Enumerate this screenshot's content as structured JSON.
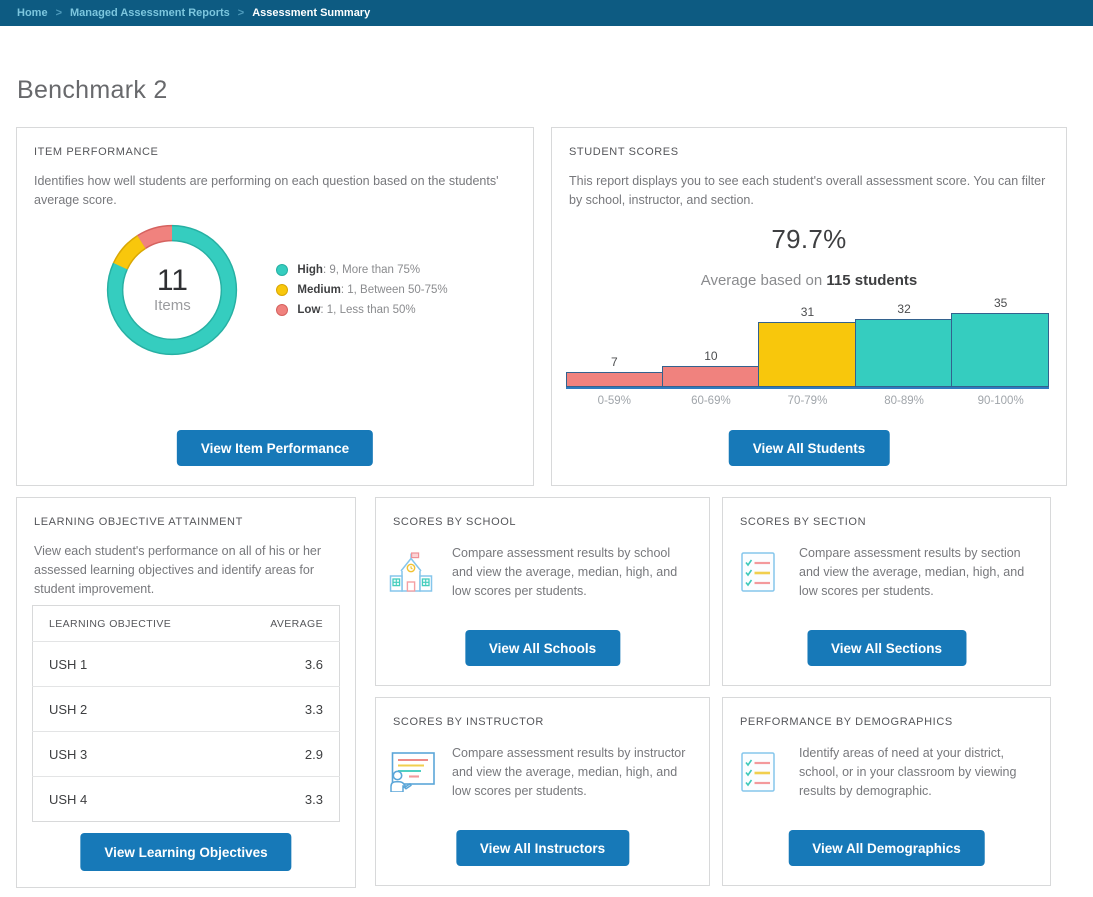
{
  "breadcrumb": {
    "separator": ">",
    "items": [
      {
        "label": "Home",
        "current": false
      },
      {
        "label": "Managed Assessment Reports",
        "current": false
      },
      {
        "label": "Assessment Summary",
        "current": true
      }
    ]
  },
  "page_title": "Benchmark 2",
  "cards": {
    "item_performance": {
      "title": "ITEM PERFORMANCE",
      "description": "Identifies how well students are performing on each question based on the students' average score.",
      "donut_center_value": "11",
      "donut_center_label": "Items",
      "button": "View Item Performance"
    },
    "student_scores": {
      "title": "STUDENT SCORES",
      "description": "This report displays you to see each student's overall assessment score. You can filter by school, instructor, and section.",
      "average_score": "79.7%",
      "average_prefix": "Average based on",
      "average_students": "115 students",
      "button": "View All Students"
    },
    "learning_objective_attainment": {
      "title": "LEARNING OBJECTIVE ATTAINMENT",
      "description": "View each student's performance on all of his or her assessed learning objectives and identify areas for student improvement.",
      "table": {
        "columns": [
          "LEARNING OBJECTIVE",
          "AVERAGE"
        ],
        "rows": [
          {
            "objective": "USH 1",
            "average": "3.6"
          },
          {
            "objective": "USH 2",
            "average": "3.3"
          },
          {
            "objective": "USH 3",
            "average": "2.9"
          },
          {
            "objective": "USH 4",
            "average": "3.3"
          }
        ]
      },
      "button": "View Learning Objectives"
    },
    "scores_by_school": {
      "title": "SCORES BY SCHOOL",
      "description": "Compare assessment results by school and view the average, median, high, and low scores per students.",
      "icon": "school-icon",
      "button": "View All Schools"
    },
    "scores_by_section": {
      "title": "SCORES BY SECTION",
      "description": "Compare assessment results by section and view the average, median, high, and low scores per students.",
      "icon": "checklist-icon",
      "button": "View All Sections"
    },
    "scores_by_instructor": {
      "title": "SCORES BY INSTRUCTOR",
      "description": "Compare assessment results by instructor and view the average, median, high, and low scores per students.",
      "icon": "presentation-icon",
      "button": "View All Instructors"
    },
    "performance_by_demographics": {
      "title": "PERFORMANCE BY DEMOGRAPHICS",
      "description": "Identify areas of need at your district, school, or in your classroom by viewing results by demographic.",
      "icon": "checklist-icon",
      "button": "View All Demographics"
    }
  },
  "chart_data": [
    {
      "id": "item_performance_donut",
      "type": "pie",
      "donut": true,
      "center_value": 11,
      "center_label": "Items",
      "legend_position": "right",
      "segments": [
        {
          "label": "High",
          "value": 9,
          "description": "More than 75%",
          "color": "#35cdbf",
          "border_color": "#27b0a3"
        },
        {
          "label": "Medium",
          "value": 1,
          "description": "Between 50-75%",
          "color": "#f8c70c",
          "border_color": "#d9a704"
        },
        {
          "label": "Low",
          "value": 1,
          "description": "Less than 50%",
          "color": "#f0827e",
          "border_color": "#d5625f"
        }
      ]
    },
    {
      "id": "student_scores_histogram",
      "type": "bar",
      "title": "",
      "xlabel": "",
      "ylabel": "",
      "categories": [
        "0-59%",
        "60-69%",
        "70-79%",
        "80-89%",
        "90-100%"
      ],
      "values": [
        7,
        10,
        31,
        32,
        35
      ],
      "bar_colors": [
        "#f0827e",
        "#f0827e",
        "#f8c70c",
        "#35cdbf",
        "#35cdbf"
      ],
      "bar_border_color": "#33628e",
      "baseline_color": "#2e7bbf",
      "ylim": [
        0,
        35
      ],
      "grid": false
    }
  ],
  "colors": {
    "accent_blue": "#1779b8",
    "breadcrumb_bg": "#0d5b82",
    "teal": "#35cdbf",
    "yellow": "#f8c70c",
    "pink": "#f0827e"
  }
}
